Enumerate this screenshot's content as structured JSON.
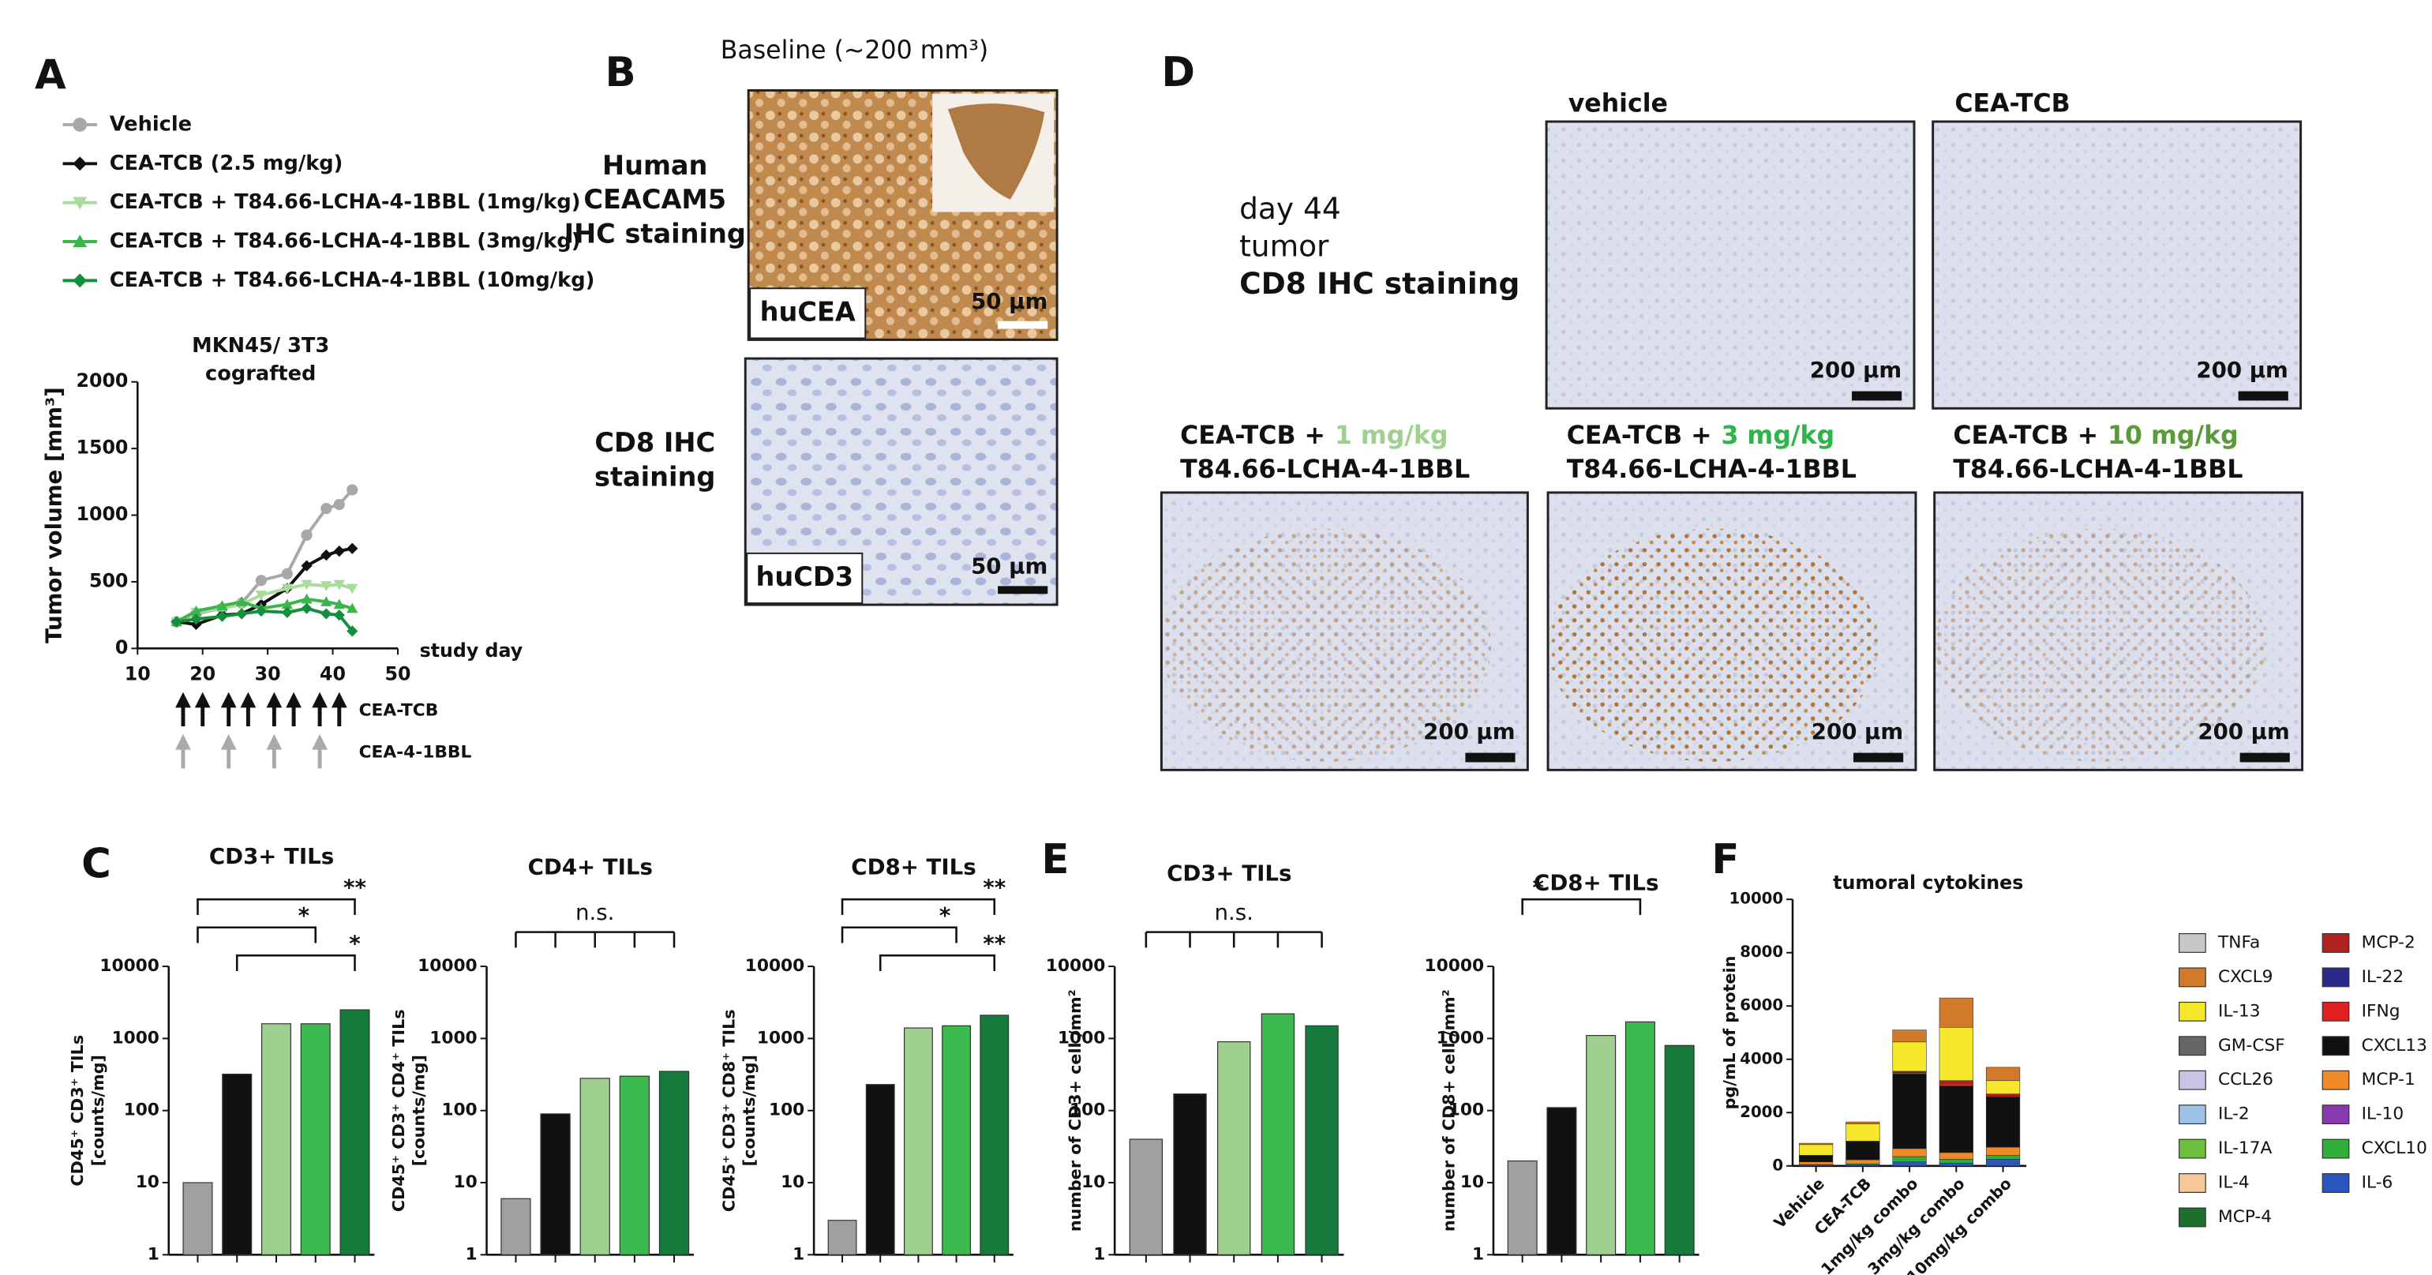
{
  "panel_labels": [
    "A",
    "B",
    "C",
    "D",
    "E",
    "F"
  ],
  "panel_b": {
    "title": "Baseline (~200 mm³)",
    "stain_top": [
      "Human",
      "CEACAM5",
      "IHC staining"
    ],
    "stain_bottom": [
      "CD8 IHC",
      "staining"
    ],
    "images": [
      {
        "label": "huCEA",
        "scale": "50 µm"
      },
      {
        "label": "huCD3",
        "scale": "50 µm"
      }
    ]
  },
  "panel_d": {
    "caption": [
      "day 44",
      "tumor",
      "CD8 IHC staining"
    ],
    "images": [
      {
        "title": "vehicle",
        "scale": "200 µm"
      },
      {
        "title": "CEA-TCB",
        "scale": "200 µm"
      },
      {
        "title": "CEA-TCB +",
        "dose": "1 mg/kg",
        "drug": "T84.66-LCHA-4-1BBL",
        "color": "#9fd08f",
        "scale": "200 µm"
      },
      {
        "title": "CEA-TCB +",
        "dose": "3 mg/kg",
        "drug": "T84.66-LCHA-4-1BBL",
        "color": "#2db44a",
        "scale": "200 µm"
      },
      {
        "title": "CEA-TCB +",
        "dose": "10 mg/kg",
        "drug": "T84.66-LCHA-4-1BBL",
        "color": "#5a9a3a",
        "scale": "200 µm"
      }
    ]
  },
  "chart_data": [
    {
      "type": "line",
      "title": [
        "MKN45/ 3T3",
        "cografted"
      ],
      "ylabel": "Tumor volume [mm³]",
      "xlabel": "study day",
      "xlim": [
        10,
        50
      ],
      "xticks": [
        10,
        20,
        30,
        40,
        50
      ],
      "ylim": [
        0,
        2000
      ],
      "yticks": [
        0,
        500,
        1000,
        1500,
        2000
      ],
      "x": [
        16,
        19,
        23,
        26,
        29,
        33,
        36,
        39,
        41,
        43
      ],
      "series": [
        {
          "name": "Vehicle",
          "color": "#a8a8a8",
          "marker": "circle",
          "values": [
            200,
            260,
            300,
            340,
            510,
            560,
            850,
            1050,
            1080,
            1190
          ]
        },
        {
          "name": "CEA-TCB (2.5 mg/kg)",
          "color": "#111111",
          "marker": "diamond",
          "values": [
            200,
            180,
            250,
            260,
            330,
            450,
            620,
            700,
            730,
            750
          ]
        },
        {
          "name": "CEA-TCB + T84.66-LCHA-4-1BBL (1mg/kg)",
          "color": "#a9dc9b",
          "marker": "triangle-down",
          "values": [
            200,
            270,
            300,
            330,
            400,
            450,
            480,
            470,
            480,
            450
          ]
        },
        {
          "name": "CEA-TCB + T84.66-LCHA-4-1BBL (3mg/kg)",
          "color": "#3cb64b",
          "marker": "triangle",
          "values": [
            200,
            280,
            320,
            350,
            300,
            330,
            370,
            350,
            330,
            300
          ]
        },
        {
          "name": "CEA-TCB + T84.66-LCHA-4-1BBL (10mg/kg)",
          "color": "#138f3e",
          "marker": "diamond",
          "values": [
            200,
            220,
            240,
            260,
            280,
            270,
            300,
            260,
            250,
            130
          ]
        }
      ],
      "dosing": [
        {
          "name": "CEA-TCB",
          "color": "#111111",
          "days": [
            17,
            20,
            24,
            27,
            31,
            34,
            38,
            41
          ]
        },
        {
          "name": "CEA-4-1BBL",
          "color": "#aaaaaa",
          "days": [
            17,
            24,
            31,
            38
          ]
        }
      ]
    },
    {
      "type": "bar",
      "title": "CD3+ TILs",
      "ylabel": [
        "CD45⁺ CD3⁺ TILs",
        "[counts/mg]"
      ],
      "yscale": "log",
      "ylim": [
        1,
        10000
      ],
      "yticks": [
        1,
        10,
        100,
        1000,
        10000
      ],
      "categories": [
        null,
        null,
        null,
        null,
        null
      ],
      "values": [
        10,
        320,
        1600,
        1600,
        2500
      ],
      "colors": [
        "#a0a0a0",
        "#111111",
        "#9fd08f",
        "#3dba4f",
        "#157a3c"
      ],
      "annotations": [
        "**",
        "*",
        "*"
      ]
    },
    {
      "type": "bar",
      "title": "CD4+ TILs",
      "ylabel": [
        "CD45⁺ CD3⁺ CD4⁺ TILs",
        "[counts/mg]"
      ],
      "yscale": "log",
      "ylim": [
        1,
        10000
      ],
      "yticks": [
        1,
        10,
        100,
        1000,
        10000
      ],
      "categories": [
        null,
        null,
        null,
        null,
        null
      ],
      "values": [
        6,
        90,
        280,
        300,
        350
      ],
      "colors": [
        "#a0a0a0",
        "#111111",
        "#9fd08f",
        "#3dba4f",
        "#157a3c"
      ],
      "annotations": [
        "n.s."
      ]
    },
    {
      "type": "bar",
      "title": "CD8+ TILs",
      "ylabel": [
        "CD45⁺ CD3⁺ CD8⁺ TILs",
        "[counts/mg]"
      ],
      "yscale": "log",
      "ylim": [
        1,
        10000
      ],
      "yticks": [
        1,
        10,
        100,
        1000,
        10000
      ],
      "categories": [
        null,
        null,
        null,
        null,
        null
      ],
      "values": [
        3,
        230,
        1400,
        1500,
        2100
      ],
      "colors": [
        "#a0a0a0",
        "#111111",
        "#9fd08f",
        "#3dba4f",
        "#157a3c"
      ],
      "annotations": [
        "**",
        "*",
        "**"
      ]
    },
    {
      "type": "bar",
      "title": "CD3+ TILs",
      "ylabel": [
        "number of CD3+ cell /mm²"
      ],
      "yscale": "log",
      "ylim": [
        1,
        10000
      ],
      "yticks": [
        1,
        10,
        100,
        1000,
        10000
      ],
      "categories": [
        null,
        null,
        null,
        null,
        null
      ],
      "values": [
        40,
        170,
        900,
        2200,
        1500
      ],
      "colors": [
        "#a0a0a0",
        "#111111",
        "#9fd08f",
        "#3dba4f",
        "#157a3c"
      ],
      "annotations": [
        "n.s."
      ]
    },
    {
      "type": "bar",
      "title": "CD8+ TILs",
      "ylabel": [
        "number of CD8+ cell /mm²"
      ],
      "yscale": "log",
      "ylim": [
        1,
        10000
      ],
      "yticks": [
        1,
        10,
        100,
        1000,
        10000
      ],
      "categories": [
        null,
        null,
        null,
        null,
        null
      ],
      "values": [
        20,
        110,
        1100,
        1700,
        800
      ],
      "colors": [
        "#a0a0a0",
        "#111111",
        "#9fd08f",
        "#3dba4f",
        "#157a3c"
      ],
      "annotations": [
        "*"
      ]
    },
    {
      "type": "stacked_bar",
      "title": "tumoral cytokines",
      "ylabel": [
        "pg/mL of protein"
      ],
      "ylim": [
        0,
        10000
      ],
      "yticks": [
        0,
        2000,
        4000,
        6000,
        8000,
        10000
      ],
      "categories": [
        "Vehicle",
        "CEA-TCB",
        "1mg/kg combo",
        "3mg/kg combo",
        "10mg/kg combo"
      ],
      "series": [
        {
          "name": "TNFa",
          "color": "#c8c8c8",
          "values": [
            0,
            0,
            0,
            0,
            0
          ]
        },
        {
          "name": "CXCL9",
          "color": "#d07a2a",
          "values": [
            50,
            70,
            450,
            1100,
            500
          ]
        },
        {
          "name": "IL-13",
          "color": "#f5e82a",
          "values": [
            400,
            650,
            1100,
            2000,
            500
          ]
        },
        {
          "name": "GM-CSF",
          "color": "#666666",
          "values": [
            0,
            0,
            0,
            0,
            0
          ]
        },
        {
          "name": "CCL26",
          "color": "#c9c3e6",
          "values": [
            0,
            0,
            0,
            0,
            0
          ]
        },
        {
          "name": "IL-2",
          "color": "#9cc3e6",
          "values": [
            0,
            0,
            0,
            0,
            0
          ]
        },
        {
          "name": "IL-17A",
          "color": "#6fbf3f",
          "values": [
            0,
            0,
            0,
            0,
            0
          ]
        },
        {
          "name": "IL-4",
          "color": "#f6c79a",
          "values": [
            0,
            0,
            0,
            0,
            0
          ]
        },
        {
          "name": "MCP-4",
          "color": "#1e6e2e",
          "values": [
            0,
            0,
            0,
            0,
            0
          ]
        },
        {
          "name": "MCP-2",
          "color": "#b22222",
          "values": [
            0,
            0,
            50,
            100,
            50
          ]
        },
        {
          "name": "IL-22",
          "color": "#2a2a8a",
          "values": [
            0,
            0,
            0,
            0,
            0
          ]
        },
        {
          "name": "IFNg",
          "color": "#e02020",
          "values": [
            0,
            0,
            50,
            100,
            50
          ]
        },
        {
          "name": "CXCL13",
          "color": "#111111",
          "values": [
            250,
            700,
            2800,
            2500,
            1900
          ]
        },
        {
          "name": "MCP-1",
          "color": "#f08a24",
          "values": [
            100,
            150,
            300,
            250,
            300
          ]
        },
        {
          "name": "IL-10",
          "color": "#8a3ab0",
          "values": [
            0,
            0,
            0,
            0,
            0
          ]
        },
        {
          "name": "CXCL10",
          "color": "#2fae3a",
          "values": [
            20,
            40,
            200,
            150,
            150
          ]
        },
        {
          "name": "IL-6",
          "color": "#2a56c0",
          "values": [
            30,
            40,
            150,
            100,
            250
          ]
        }
      ]
    }
  ]
}
